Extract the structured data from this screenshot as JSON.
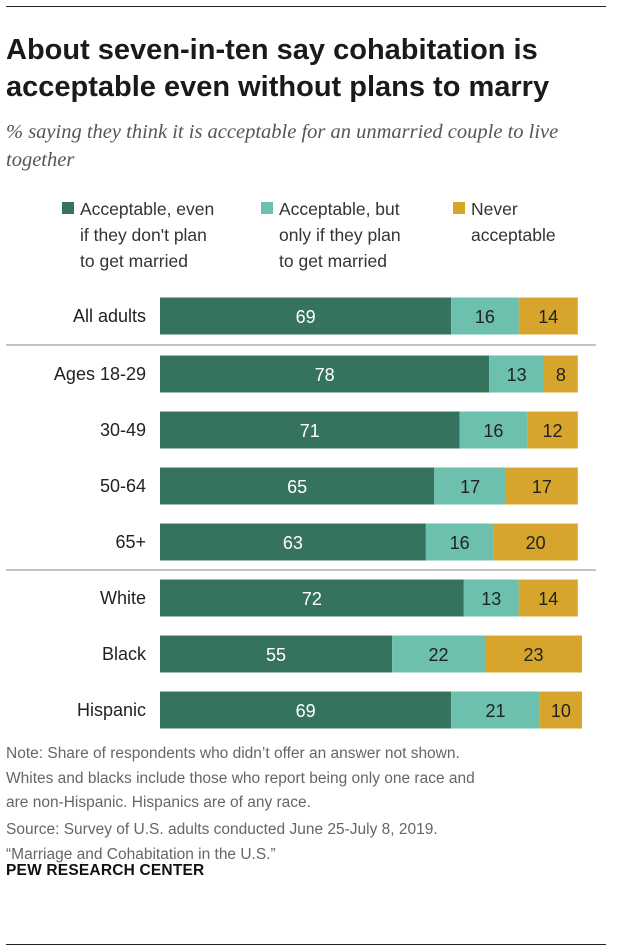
{
  "title": "About seven-in-ten say cohabitation is acceptable even without plans to marry",
  "subtitle": "% saying they think it is acceptable for an unmarried couple to live together",
  "legend": [
    {
      "label": "Acceptable, even\nif they don't plan\nto get married",
      "color": "#36735f"
    },
    {
      "label": "Acceptable, but\nonly if they plan\nto get married",
      "color": "#6dc0ad"
    },
    {
      "label": "Never\nacceptable",
      "color": "#d7a52c"
    }
  ],
  "chart_data": {
    "type": "bar",
    "orientation": "horizontal",
    "stacked": true,
    "categories": [
      "All adults",
      "Ages 18-29",
      "30-49",
      "50-64",
      "65+",
      "White",
      "Black",
      "Hispanic"
    ],
    "series": [
      {
        "name": "Acceptable, even if they don't plan to get married",
        "color": "#36735f",
        "label_color": "#ffffff",
        "values": [
          69,
          78,
          71,
          65,
          63,
          72,
          55,
          69
        ]
      },
      {
        "name": "Acceptable, but only if they plan to get married",
        "color": "#6dc0ad",
        "label_color": "#222222",
        "values": [
          16,
          13,
          16,
          17,
          16,
          13,
          22,
          21
        ]
      },
      {
        "name": "Never acceptable",
        "color": "#d7a52c",
        "label_color": "#222222",
        "values": [
          14,
          8,
          12,
          17,
          20,
          14,
          23,
          10
        ]
      }
    ],
    "xlim": [
      0,
      100
    ],
    "separators_after": [
      "All adults",
      "65+"
    ]
  },
  "note": "Note: Share of respondents who didn’t offer an answer not shown.\nWhites and blacks include those who report being only one race and\nare non-Hispanic. Hispanics are of any race.",
  "source": "Source: Survey of U.S. adults conducted June 25-July 8, 2019.\n“Marriage and Cohabitation in the U.S.”",
  "brand": "PEW RESEARCH CENTER"
}
